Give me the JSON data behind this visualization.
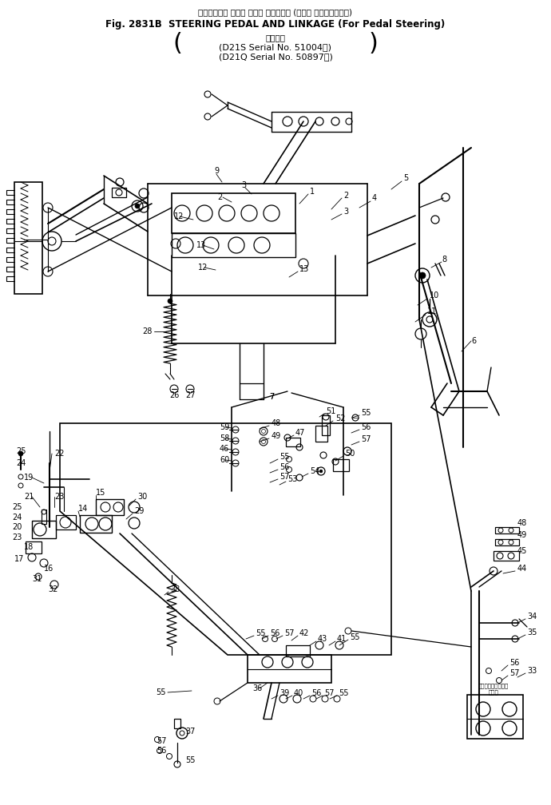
{
  "title_jp": "ステアリング ペダル および リンケージ (ペダル ステアリング用)",
  "title_en": "Fig. 2831B  STEERING PEDAL AND LINKAGE (For Pedal Steering)",
  "subtitle1": "適用号機",
  "subtitle2": "(D21S Serial No. 51004～)",
  "subtitle3": "(D21Q Serial No. 50897～)",
  "bg_color": "#ffffff",
  "lc": "#000000",
  "fig_width": 6.9,
  "fig_height": 10.08,
  "dpi": 100
}
